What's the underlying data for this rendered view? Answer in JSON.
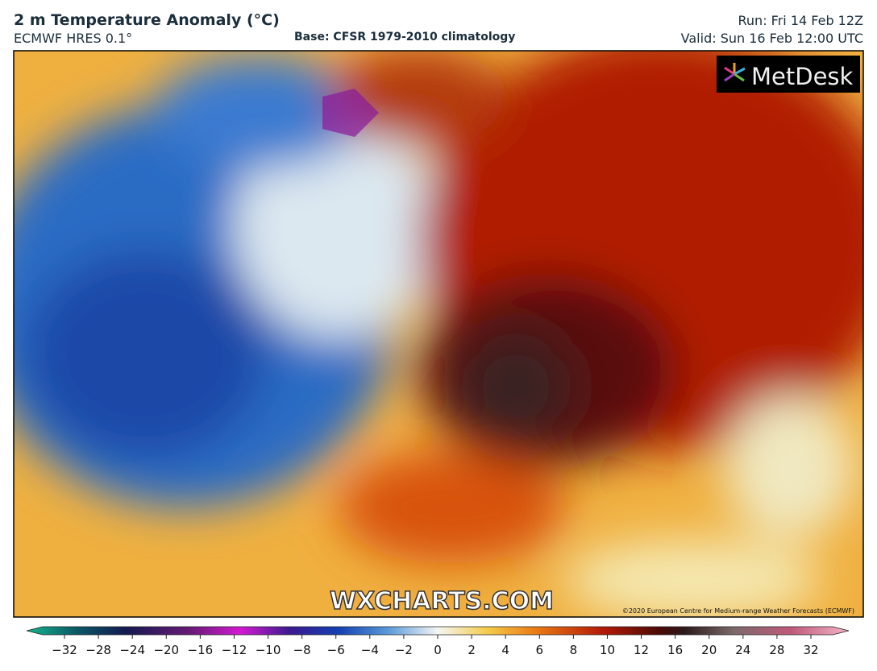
{
  "header": {
    "title": "2 m Temperature Anomaly (°C)",
    "model": "ECMWF HRES 0.1°",
    "base": "Base: CFSR 1979-2010 climatology",
    "run": "Run: Fri 14 Feb 12Z",
    "valid": "Valid: Sun 16 Feb 12:00 UTC"
  },
  "map": {
    "logo": "MetDesk",
    "watermark": "WXCHARTS.COM",
    "copyright": "©2020 European Centre for Medium-range Weather Forecasts (ECMWF)"
  },
  "colorbar": {
    "ticks": [
      "−32",
      "−28",
      "−24",
      "−20",
      "−16",
      "−12",
      "−10",
      "−8",
      "−6",
      "−4",
      "−2",
      "0",
      "2",
      "4",
      "6",
      "8",
      "10",
      "12",
      "16",
      "20",
      "24",
      "28",
      "32"
    ]
  }
}
